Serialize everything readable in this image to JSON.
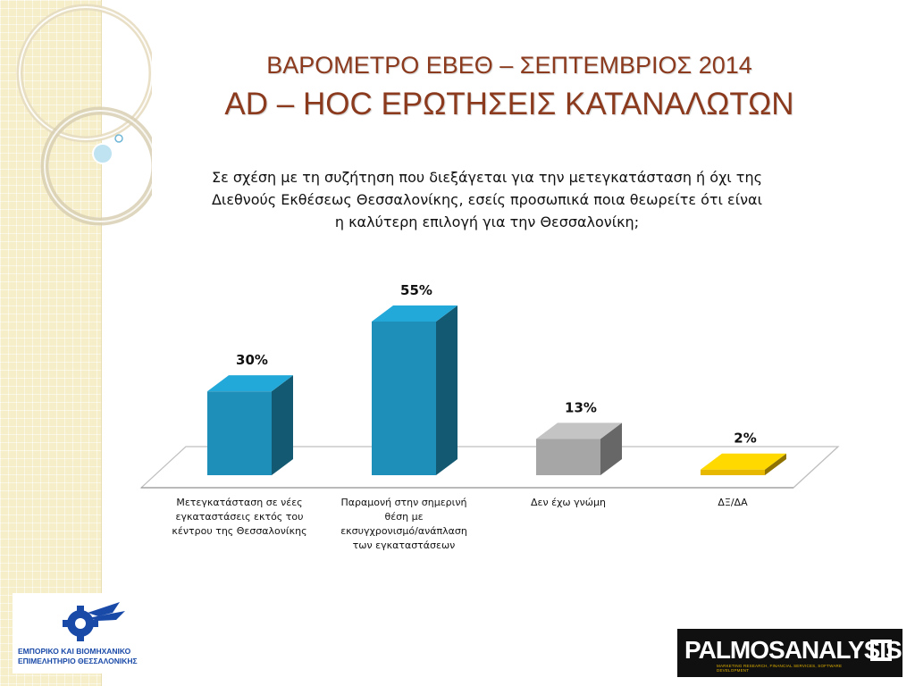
{
  "slide": {
    "title_line1": "ΒΑΡΟΜΕΤΡΟ ΕΒΕΘ – ΣΕΠΤΕΜΒΡΙΟΣ 2014",
    "title_line2": "AD – HOC ΕΡΩΤΗΣΕΙΣ ΚΑΤΑΝΑΛΩΤΩΝ",
    "question_lines": [
      "Σε σχέση με τη συζήτηση που διεξάγεται για την μετεγκατάσταση ή όχι της",
      "Διεθνούς Εκθέσεως Θεσσαλονίκης, εσείς προσωπικά ποια θεωρείτε ότι είναι",
      "η καλύτερη επιλογή για την Θεσσαλονίκη;"
    ]
  },
  "chart_data": {
    "type": "bar",
    "categories": [
      [
        "Μετεγκατάσταση σε νέες",
        "εγκαταστάσεις εκτός του",
        "κέντρου της Θεσσαλονίκης"
      ],
      [
        "Παραμονή στην σημερινή",
        "θέση με",
        "εκσυγχρονισμό/ανάπλαση",
        "των εγκαταστάσεων"
      ],
      [
        "Δεν έχω γνώμη"
      ],
      [
        "ΔΞ/ΔΑ"
      ]
    ],
    "values": [
      30,
      55,
      13,
      2
    ],
    "value_labels": [
      "30%",
      "55%",
      "13%",
      "2%"
    ],
    "unit": "%",
    "ylim": [
      0,
      55
    ],
    "grid": false,
    "legend": "none",
    "colors": [
      "#1e8fb8",
      "#1e8fb8",
      "#a6a6a6",
      "#e6b800"
    ],
    "title": "",
    "xlabel": "",
    "ylabel": ""
  },
  "logos": {
    "left_text": [
      "ΕΜΠΟΡΙΚΟ ΚΑΙ ΒΙΟΜΗΧΑΝΙΚΟ",
      "ΕΠΙΜΕΛΗΤΗΡΙΟ ΘΕΣΣΑΛΟΝΙΚΗΣ"
    ],
    "right_brand": "PALMOSANALYSIS",
    "right_tagline": "MARKETING RESEARCH, FINANCIAL SERVICES, SOFTWARE DEVELOPMENT",
    "brand_color": "#1a4aa8"
  }
}
